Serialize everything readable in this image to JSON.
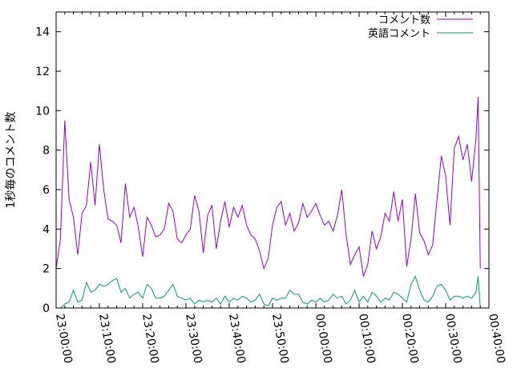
{
  "chart_data": {
    "type": "line",
    "ylabel": "1秒毎のコメント数",
    "xlabel": "",
    "ylim": [
      0,
      15
    ],
    "yticks": [
      0,
      2,
      4,
      6,
      8,
      10,
      12,
      14
    ],
    "xlim": [
      "23:00:00",
      "00:40:00"
    ],
    "xticks": [
      "23:00:00",
      "23:10:00",
      "23:20:00",
      "23:30:00",
      "23:40:00",
      "23:50:00",
      "00:00:00",
      "00:10:00",
      "00:20:00",
      "00:30:00",
      "00:40:00"
    ],
    "grid": false,
    "legend_position": "top-right",
    "series": [
      {
        "name": "コメント数",
        "color": "#9400d3",
        "points": [
          [
            "23:00:00",
            2.0
          ],
          [
            "23:01:00",
            3.5
          ],
          [
            "23:02:00",
            9.5
          ],
          [
            "23:03:00",
            5.5
          ],
          [
            "23:04:00",
            4.6
          ],
          [
            "23:05:00",
            2.7
          ],
          [
            "23:06:00",
            4.8
          ],
          [
            "23:07:00",
            5.2
          ],
          [
            "23:08:00",
            7.4
          ],
          [
            "23:09:00",
            5.2
          ],
          [
            "23:10:00",
            8.3
          ],
          [
            "23:11:00",
            6.0
          ],
          [
            "23:12:00",
            4.5
          ],
          [
            "23:13:00",
            4.4
          ],
          [
            "23:14:00",
            4.2
          ],
          [
            "23:15:00",
            3.3
          ],
          [
            "23:16:00",
            6.3
          ],
          [
            "23:17:00",
            4.6
          ],
          [
            "23:18:00",
            5.1
          ],
          [
            "23:19:00",
            4.1
          ],
          [
            "23:20:00",
            2.6
          ],
          [
            "23:21:00",
            4.6
          ],
          [
            "23:22:00",
            4.2
          ],
          [
            "23:23:00",
            3.6
          ],
          [
            "23:24:00",
            3.7
          ],
          [
            "23:25:00",
            4.0
          ],
          [
            "23:26:00",
            5.3
          ],
          [
            "23:27:00",
            4.9
          ],
          [
            "23:28:00",
            3.5
          ],
          [
            "23:29:00",
            3.3
          ],
          [
            "23:30:00",
            3.7
          ],
          [
            "23:31:00",
            4.0
          ],
          [
            "23:32:00",
            5.7
          ],
          [
            "23:33:00",
            4.9
          ],
          [
            "23:34:00",
            2.8
          ],
          [
            "23:35:00",
            4.7
          ],
          [
            "23:36:00",
            5.2
          ],
          [
            "23:37:00",
            3.0
          ],
          [
            "23:38:00",
            4.4
          ],
          [
            "23:39:00",
            5.4
          ],
          [
            "23:40:00",
            4.1
          ],
          [
            "23:41:00",
            5.1
          ],
          [
            "23:42:00",
            4.6
          ],
          [
            "23:43:00",
            5.2
          ],
          [
            "23:44:00",
            4.2
          ],
          [
            "23:45:00",
            3.7
          ],
          [
            "23:46:00",
            3.5
          ],
          [
            "23:47:00",
            2.9
          ],
          [
            "23:48:00",
            2.0
          ],
          [
            "23:49:00",
            2.5
          ],
          [
            "23:50:00",
            4.2
          ],
          [
            "23:51:00",
            5.1
          ],
          [
            "23:52:00",
            5.4
          ],
          [
            "23:53:00",
            4.2
          ],
          [
            "23:54:00",
            4.8
          ],
          [
            "23:55:00",
            3.9
          ],
          [
            "23:56:00",
            4.3
          ],
          [
            "23:57:00",
            5.3
          ],
          [
            "23:58:00",
            4.6
          ],
          [
            "23:59:00",
            4.9
          ],
          [
            "00:00:00",
            5.3
          ],
          [
            "00:01:00",
            4.7
          ],
          [
            "00:02:00",
            4.2
          ],
          [
            "00:03:00",
            4.4
          ],
          [
            "00:04:00",
            3.9
          ],
          [
            "00:05:00",
            4.7
          ],
          [
            "00:06:00",
            6.0
          ],
          [
            "00:07:00",
            3.7
          ],
          [
            "00:08:00",
            2.2
          ],
          [
            "00:09:00",
            2.7
          ],
          [
            "00:10:00",
            3.1
          ],
          [
            "00:11:00",
            1.6
          ],
          [
            "00:12:00",
            2.2
          ],
          [
            "00:13:00",
            3.9
          ],
          [
            "00:14:00",
            3.0
          ],
          [
            "00:15:00",
            3.6
          ],
          [
            "00:16:00",
            4.8
          ],
          [
            "00:17:00",
            4.4
          ],
          [
            "00:18:00",
            5.9
          ],
          [
            "00:19:00",
            4.4
          ],
          [
            "00:20:00",
            5.5
          ],
          [
            "00:21:00",
            2.1
          ],
          [
            "00:22:00",
            3.5
          ],
          [
            "00:23:00",
            5.8
          ],
          [
            "00:24:00",
            3.8
          ],
          [
            "00:25:00",
            3.4
          ],
          [
            "00:26:00",
            2.7
          ],
          [
            "00:27:00",
            3.2
          ],
          [
            "00:28:00",
            5.5
          ],
          [
            "00:29:00",
            7.7
          ],
          [
            "00:30:00",
            6.7
          ],
          [
            "00:31:00",
            4.2
          ],
          [
            "00:32:00",
            8.1
          ],
          [
            "00:33:00",
            8.7
          ],
          [
            "00:34:00",
            7.5
          ],
          [
            "00:35:00",
            8.3
          ],
          [
            "00:36:00",
            6.4
          ],
          [
            "00:37:00",
            8.6
          ],
          [
            "00:37:30",
            10.7
          ],
          [
            "00:38:00",
            2.0
          ]
        ]
      },
      {
        "name": "英語コメント",
        "color": "#009e73",
        "points": [
          [
            "23:01:00",
            0.0
          ],
          [
            "23:02:00",
            0.2
          ],
          [
            "23:03:00",
            0.3
          ],
          [
            "23:04:00",
            0.9
          ],
          [
            "23:05:00",
            0.3
          ],
          [
            "23:06:00",
            0.4
          ],
          [
            "23:07:00",
            1.3
          ],
          [
            "23:08:00",
            0.8
          ],
          [
            "23:09:00",
            0.9
          ],
          [
            "23:10:00",
            1.2
          ],
          [
            "23:11:00",
            1.1
          ],
          [
            "23:12:00",
            1.2
          ],
          [
            "23:13:00",
            1.4
          ],
          [
            "23:14:00",
            1.5
          ],
          [
            "23:15:00",
            0.8
          ],
          [
            "23:16:00",
            1.0
          ],
          [
            "23:17:00",
            0.5
          ],
          [
            "23:18:00",
            0.7
          ],
          [
            "23:19:00",
            0.8
          ],
          [
            "23:20:00",
            0.5
          ],
          [
            "23:21:00",
            1.2
          ],
          [
            "23:22:00",
            1.0
          ],
          [
            "23:23:00",
            0.5
          ],
          [
            "23:24:00",
            0.5
          ],
          [
            "23:25:00",
            0.6
          ],
          [
            "23:26:00",
            0.9
          ],
          [
            "23:27:00",
            1.2
          ],
          [
            "23:28:00",
            0.6
          ],
          [
            "23:29:00",
            0.5
          ],
          [
            "23:30:00",
            0.4
          ],
          [
            "23:31:00",
            0.5
          ],
          [
            "23:32:00",
            0.2
          ],
          [
            "23:33:00",
            0.4
          ],
          [
            "23:34:00",
            0.3
          ],
          [
            "23:35:00",
            0.4
          ],
          [
            "23:36:00",
            0.3
          ],
          [
            "23:37:00",
            0.5
          ],
          [
            "23:38:00",
            0.2
          ],
          [
            "23:39:00",
            0.6
          ],
          [
            "23:40:00",
            0.3
          ],
          [
            "23:41:00",
            0.5
          ],
          [
            "23:42:00",
            0.4
          ],
          [
            "23:43:00",
            0.6
          ],
          [
            "23:44:00",
            0.5
          ],
          [
            "23:45:00",
            0.3
          ],
          [
            "23:46:00",
            0.4
          ],
          [
            "23:47:00",
            0.7
          ],
          [
            "23:48:00",
            0.2
          ],
          [
            "23:49:00",
            0.1
          ],
          [
            "23:50:00",
            0.5
          ],
          [
            "23:51:00",
            0.4
          ],
          [
            "23:52:00",
            0.5
          ],
          [
            "23:53:00",
            0.5
          ],
          [
            "23:54:00",
            0.9
          ],
          [
            "23:55:00",
            0.7
          ],
          [
            "23:56:00",
            0.7
          ],
          [
            "23:57:00",
            0.3
          ],
          [
            "23:58:00",
            0.2
          ],
          [
            "23:59:00",
            0.4
          ],
          [
            "00:00:00",
            0.3
          ],
          [
            "00:01:00",
            0.5
          ],
          [
            "00:02:00",
            0.3
          ],
          [
            "00:03:00",
            0.4
          ],
          [
            "00:04:00",
            0.7
          ],
          [
            "00:05:00",
            0.5
          ],
          [
            "00:06:00",
            0.6
          ],
          [
            "00:07:00",
            0.2
          ],
          [
            "00:08:00",
            0.4
          ],
          [
            "00:09:00",
            0.9
          ],
          [
            "00:10:00",
            0.3
          ],
          [
            "00:11:00",
            0.6
          ],
          [
            "00:12:00",
            0.3
          ],
          [
            "00:13:00",
            0.8
          ],
          [
            "00:14:00",
            0.6
          ],
          [
            "00:15:00",
            0.3
          ],
          [
            "00:16:00",
            0.5
          ],
          [
            "00:17:00",
            0.4
          ],
          [
            "00:18:00",
            0.8
          ],
          [
            "00:19:00",
            0.7
          ],
          [
            "00:20:00",
            0.5
          ],
          [
            "00:21:00",
            0.3
          ],
          [
            "00:22:00",
            1.2
          ],
          [
            "00:23:00",
            1.6
          ],
          [
            "00:24:00",
            0.9
          ],
          [
            "00:25:00",
            0.4
          ],
          [
            "00:26:00",
            0.3
          ],
          [
            "00:27:00",
            0.6
          ],
          [
            "00:28:00",
            1.1
          ],
          [
            "00:29:00",
            1.2
          ],
          [
            "00:30:00",
            0.9
          ],
          [
            "00:31:00",
            0.4
          ],
          [
            "00:32:00",
            0.6
          ],
          [
            "00:33:00",
            0.6
          ],
          [
            "00:34:00",
            0.5
          ],
          [
            "00:35:00",
            0.6
          ],
          [
            "00:36:00",
            0.5
          ],
          [
            "00:37:00",
            0.8
          ],
          [
            "00:37:30",
            1.6
          ],
          [
            "00:38:00",
            0.0
          ]
        ]
      }
    ]
  }
}
